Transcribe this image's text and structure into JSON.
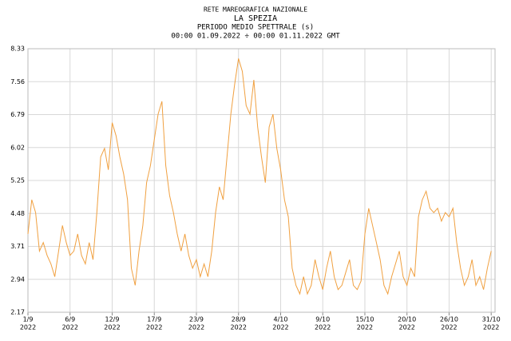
{
  "chart_data": {
    "type": "line",
    "header": "RETE MAREOGRAFICA NAZIONALE",
    "title": "LA SPEZIA",
    "subtitle": "PERIODO MEDIO SPETTRALE (s)",
    "period": "00:00 01.09.2022 ÷ 00:00 01.11.2022 GMT",
    "xlim": [
      "2022-09-01T00:00",
      "2022-11-01T00:00"
    ],
    "xticks": [
      {
        "value": "2022-09-01T00:00",
        "label": "1/9",
        "year": "2022"
      },
      {
        "value": "2022-09-06T12:00",
        "label": "6/9",
        "year": "2022"
      },
      {
        "value": "2022-09-12T00:00",
        "label": "12/9",
        "year": "2022"
      },
      {
        "value": "2022-09-17T12:00",
        "label": "17/9",
        "year": "2022"
      },
      {
        "value": "2022-09-23T00:00",
        "label": "23/9",
        "year": "2022"
      },
      {
        "value": "2022-09-28T12:00",
        "label": "28/9",
        "year": "2022"
      },
      {
        "value": "2022-10-04T00:00",
        "label": "4/10",
        "year": "2022"
      },
      {
        "value": "2022-10-09T12:00",
        "label": "9/10",
        "year": "2022"
      },
      {
        "value": "2022-10-15T00:00",
        "label": "15/10",
        "year": "2022"
      },
      {
        "value": "2022-10-20T12:00",
        "label": "20/10",
        "year": "2022"
      },
      {
        "value": "2022-10-26T00:00",
        "label": "26/10",
        "year": "2022"
      },
      {
        "value": "2022-10-31T12:00",
        "label": "31/10",
        "year": "2022"
      }
    ],
    "ylim": [
      2.17,
      8.33
    ],
    "yticks": [
      2.17,
      2.94,
      3.71,
      4.48,
      5.25,
      6.02,
      6.79,
      7.56,
      8.33
    ],
    "grid": true,
    "x": [
      "2022-09-01T00:00",
      "2022-09-01T12:00",
      "2022-09-02T00:00",
      "2022-09-02T12:00",
      "2022-09-03T00:00",
      "2022-09-03T12:00",
      "2022-09-04T00:00",
      "2022-09-04T12:00",
      "2022-09-05T00:00",
      "2022-09-05T12:00",
      "2022-09-06T00:00",
      "2022-09-06T12:00",
      "2022-09-07T00:00",
      "2022-09-07T12:00",
      "2022-09-08T00:00",
      "2022-09-08T12:00",
      "2022-09-09T00:00",
      "2022-09-09T12:00",
      "2022-09-10T00:00",
      "2022-09-10T12:00",
      "2022-09-11T00:00",
      "2022-09-11T12:00",
      "2022-09-12T00:00",
      "2022-09-12T12:00",
      "2022-09-13T00:00",
      "2022-09-13T12:00",
      "2022-09-14T00:00",
      "2022-09-14T12:00",
      "2022-09-15T00:00",
      "2022-09-15T12:00",
      "2022-09-16T00:00",
      "2022-09-16T12:00",
      "2022-09-17T00:00",
      "2022-09-17T12:00",
      "2022-09-18T00:00",
      "2022-09-18T12:00",
      "2022-09-19T00:00",
      "2022-09-19T12:00",
      "2022-09-20T00:00",
      "2022-09-20T12:00",
      "2022-09-21T00:00",
      "2022-09-21T12:00",
      "2022-09-22T00:00",
      "2022-09-22T12:00",
      "2022-09-23T00:00",
      "2022-09-23T12:00",
      "2022-09-24T00:00",
      "2022-09-24T12:00",
      "2022-09-25T00:00",
      "2022-09-25T12:00",
      "2022-09-26T00:00",
      "2022-09-26T12:00",
      "2022-09-27T00:00",
      "2022-09-27T12:00",
      "2022-09-28T00:00",
      "2022-09-28T12:00",
      "2022-09-29T00:00",
      "2022-09-29T12:00",
      "2022-09-30T00:00",
      "2022-09-30T12:00",
      "2022-10-01T00:00",
      "2022-10-01T12:00",
      "2022-10-02T00:00",
      "2022-10-02T12:00",
      "2022-10-03T00:00",
      "2022-10-03T12:00",
      "2022-10-04T00:00",
      "2022-10-04T12:00",
      "2022-10-05T00:00",
      "2022-10-05T12:00",
      "2022-10-06T00:00",
      "2022-10-06T12:00",
      "2022-10-07T00:00",
      "2022-10-07T12:00",
      "2022-10-08T00:00",
      "2022-10-08T12:00",
      "2022-10-09T00:00",
      "2022-10-09T12:00",
      "2022-10-10T00:00",
      "2022-10-10T12:00",
      "2022-10-11T00:00",
      "2022-10-11T12:00",
      "2022-10-12T00:00",
      "2022-10-12T12:00",
      "2022-10-13T00:00",
      "2022-10-13T12:00",
      "2022-10-14T00:00",
      "2022-10-14T12:00",
      "2022-10-15T00:00",
      "2022-10-15T12:00",
      "2022-10-16T00:00",
      "2022-10-16T12:00",
      "2022-10-17T00:00",
      "2022-10-17T12:00",
      "2022-10-18T00:00",
      "2022-10-18T12:00",
      "2022-10-19T00:00",
      "2022-10-19T12:00",
      "2022-10-20T00:00",
      "2022-10-20T12:00",
      "2022-10-21T00:00",
      "2022-10-21T12:00",
      "2022-10-22T00:00",
      "2022-10-22T12:00",
      "2022-10-23T00:00",
      "2022-10-23T12:00",
      "2022-10-24T00:00",
      "2022-10-24T12:00",
      "2022-10-25T00:00",
      "2022-10-25T12:00",
      "2022-10-26T00:00",
      "2022-10-26T12:00",
      "2022-10-27T00:00",
      "2022-10-27T12:00",
      "2022-10-28T00:00",
      "2022-10-28T12:00",
      "2022-10-29T00:00",
      "2022-10-29T12:00",
      "2022-10-30T00:00",
      "2022-10-30T12:00",
      "2022-10-31T00:00",
      "2022-10-31T12:00"
    ],
    "series": [
      {
        "color": "#f0a040",
        "values": [
          4.0,
          4.8,
          4.5,
          3.6,
          3.8,
          3.5,
          3.3,
          3.0,
          3.6,
          4.2,
          3.8,
          3.5,
          3.6,
          4.0,
          3.5,
          3.3,
          3.8,
          3.4,
          4.5,
          5.8,
          6.0,
          5.5,
          6.6,
          6.3,
          5.8,
          5.4,
          4.8,
          3.2,
          2.8,
          3.6,
          4.2,
          5.2,
          5.6,
          6.2,
          6.8,
          7.1,
          5.6,
          4.9,
          4.5,
          4.0,
          3.6,
          4.0,
          3.5,
          3.2,
          3.4,
          3.0,
          3.3,
          3.0,
          3.6,
          4.5,
          5.1,
          4.8,
          5.8,
          6.8,
          7.5,
          8.1,
          7.8,
          7.0,
          6.8,
          7.6,
          6.5,
          5.8,
          5.2,
          6.5,
          6.8,
          6.0,
          5.5,
          4.8,
          4.4,
          3.2,
          2.8,
          2.6,
          3.0,
          2.6,
          2.8,
          3.4,
          3.0,
          2.7,
          3.2,
          3.6,
          3.0,
          2.7,
          2.8,
          3.1,
          3.4,
          2.8,
          2.7,
          2.9,
          4.0,
          4.6,
          4.2,
          3.8,
          3.4,
          2.8,
          2.6,
          3.0,
          3.3,
          3.6,
          3.0,
          2.8,
          3.2,
          3.0,
          4.4,
          4.8,
          5.0,
          4.6,
          4.5,
          4.6,
          4.3,
          4.5,
          4.4,
          4.6,
          3.8,
          3.2,
          2.8,
          3.0,
          3.4,
          2.8,
          3.0,
          2.7,
          3.2,
          3.6
        ]
      }
    ]
  }
}
